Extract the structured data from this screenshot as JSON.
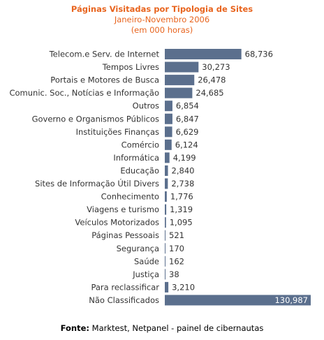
{
  "colors": {
    "title": "#e8641e",
    "bar": "#5b6f8d",
    "text": "#333333"
  },
  "source": {
    "label": "Fonte:",
    "text": "Marktest, Netpanel - painel de cibernautas"
  },
  "chart_data": {
    "type": "bar",
    "orientation": "horizontal",
    "title": "Páginas Visitadas por Tipologia de Sites",
    "subtitle_lines": [
      "Janeiro-Novembro 2006",
      "(em 000 horas)"
    ],
    "categories": [
      "Telecom.e Serv. de Internet",
      "Tempos Livres",
      "Portais e Motores de Busca",
      "Comunic. Soc., Notícias e Informação",
      "Outros",
      "Governo e Organismos Públicos",
      "Instituições Finanças",
      "Comércio",
      "Informática",
      "Educação",
      "Sites de Informação Útil Divers",
      "Conhecimento",
      "Viagens e turismo",
      "Veículos Motorizados",
      "Páginas Pessoais",
      "Segurança",
      "Saúde",
      "Justiça",
      "Para reclassificar",
      "Não Classificados"
    ],
    "values": [
      68736,
      30273,
      26478,
      24685,
      6854,
      6847,
      6629,
      6124,
      4199,
      2840,
      2738,
      1776,
      1319,
      1095,
      521,
      170,
      162,
      38,
      3210,
      130987
    ],
    "value_labels": [
      "68,736",
      "30,273",
      "26,478",
      "24,685",
      "6,854",
      "6,847",
      "6,629",
      "6,124",
      "4,199",
      "2,840",
      "2,738",
      "1,776",
      "1,319",
      "1,095",
      "521",
      "170",
      "162",
      "38",
      "3,210",
      "130,987"
    ],
    "legend": "none",
    "grid": false
  }
}
